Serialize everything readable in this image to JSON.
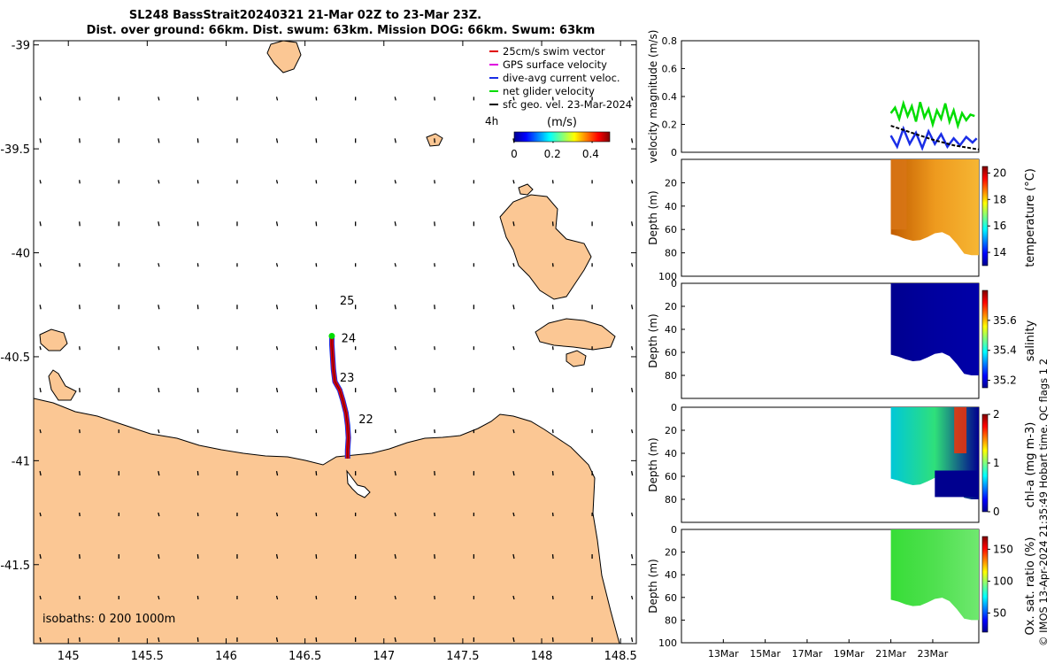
{
  "header": {
    "title_line1": "SL248 BassStrait20240321 21-Mar 02Z to 23-Mar 23Z.",
    "title_line2": "Dist. over ground: 66km. Dist. swum: 63km. Mission DOG: 66km. Swum: 63km"
  },
  "chart_data": [
    {
      "type": "map",
      "name": "glider track map",
      "xlim": [
        144.78,
        148.6
      ],
      "ylim": [
        -41.88,
        -38.98
      ],
      "x_ticks": [
        145,
        145.5,
        146,
        146.5,
        147,
        147.5,
        148,
        148.5
      ],
      "x_tick_labels": [
        "145",
        "145.5",
        "146",
        "146.5",
        "147",
        "147.5",
        "148",
        "148.5"
      ],
      "y_ticks": [
        -39,
        -39.5,
        -40,
        -40.5,
        -41,
        -41.5
      ],
      "y_tick_labels": [
        "-39",
        "-39.5",
        "-40",
        "-40.5",
        "-41",
        "-41.5"
      ],
      "legend": [
        {
          "label": "25cm/s swim vector",
          "color": "#e00000"
        },
        {
          "label": "GPS surface velocity",
          "color": "#e000e0"
        },
        {
          "label": "dive-avg current veloc.",
          "color": "#1a2ee6"
        },
        {
          "label": "net glider velocity",
          "color": "#00dd00"
        },
        {
          "label": "sfc geo. vel. 23-Mar-2024",
          "color": "#000000"
        },
        {
          "label": "4h",
          "color": "#000000"
        }
      ],
      "colorbar": {
        "label": "(m/s)",
        "ticks": [
          "0",
          "0.2",
          "0.4"
        ],
        "range": [
          0,
          0.5
        ]
      },
      "isobath_label": "isobaths: 0   200  1000m",
      "day_labels": [
        {
          "text": "25",
          "lon": 146.72,
          "lat": -40.25
        },
        {
          "text": "24",
          "lon": 146.73,
          "lat": -40.43
        },
        {
          "text": "23",
          "lon": 146.72,
          "lat": -40.62
        },
        {
          "text": "22",
          "lon": 146.84,
          "lat": -40.82
        }
      ],
      "track": [
        [
          146.67,
          -40.4
        ],
        [
          146.67,
          -40.44
        ],
        [
          146.675,
          -40.5
        ],
        [
          146.68,
          -40.56
        ],
        [
          146.69,
          -40.62
        ],
        [
          146.72,
          -40.66
        ],
        [
          146.74,
          -40.71
        ],
        [
          146.76,
          -40.77
        ],
        [
          146.77,
          -40.83
        ],
        [
          146.775,
          -40.89
        ],
        [
          146.77,
          -40.95
        ],
        [
          146.77,
          -40.99
        ]
      ],
      "velocity_grid": {
        "lon_start": 144.82,
        "lon_step": 0.25,
        "lat_start": -39.25,
        "lat_step": -0.2,
        "direction": "south-southeast"
      }
    },
    {
      "type": "line",
      "name": "velocity magnitude panel",
      "ylabel": "velocity magnitude (m/s)",
      "ylim": [
        0,
        0.8
      ],
      "y_ticks": [
        "0",
        "0.2",
        "0.4",
        "0.6",
        "0.8"
      ],
      "x_day_range": [
        11,
        25.2
      ],
      "series": [
        {
          "name": "net glider velocity",
          "color": "#00dd00",
          "x": [
            21.0,
            21.2,
            21.4,
            21.6,
            21.8,
            22.0,
            22.2,
            22.4,
            22.6,
            22.8,
            23.0,
            23.2,
            23.4,
            23.6,
            23.8,
            24.0,
            24.2,
            24.4,
            24.6,
            24.8,
            25.0
          ],
          "values": [
            0.28,
            0.32,
            0.24,
            0.35,
            0.26,
            0.33,
            0.22,
            0.36,
            0.25,
            0.31,
            0.2,
            0.3,
            0.24,
            0.35,
            0.22,
            0.3,
            0.19,
            0.28,
            0.23,
            0.27,
            0.26
          ]
        },
        {
          "name": "dive-avg current veloc.",
          "color": "#1a2ee6",
          "x": [
            21.0,
            21.3,
            21.6,
            21.9,
            22.2,
            22.5,
            22.8,
            23.1,
            23.4,
            23.7,
            24.0,
            24.3,
            24.6,
            24.9,
            25.1
          ],
          "values": [
            0.12,
            0.04,
            0.17,
            0.06,
            0.14,
            0.03,
            0.15,
            0.06,
            0.13,
            0.04,
            0.1,
            0.05,
            0.11,
            0.07,
            0.1
          ]
        },
        {
          "name": "sfc geo. vel.",
          "color": "#000000",
          "x": [
            21.0,
            22.0,
            23.0,
            24.0,
            25.2
          ],
          "values": [
            0.19,
            0.14,
            0.09,
            0.05,
            0.02
          ]
        }
      ]
    },
    {
      "type": "heatmap",
      "name": "temperature section",
      "ylabel": "Depth (m)",
      "ylim": [
        100,
        0
      ],
      "y_ticks": [
        "20",
        "40",
        "60",
        "80",
        "100"
      ],
      "x_day_range": [
        21,
        25.2
      ],
      "max_depth": 82,
      "colorbar_label": "temperature (°C)",
      "colorbar_ticks": [
        "14",
        "16",
        "18",
        "20"
      ],
      "range": [
        13,
        20.5
      ]
    },
    {
      "type": "heatmap",
      "name": "salinity section",
      "ylabel": "Depth (m)",
      "ylim": [
        100,
        0
      ],
      "y_ticks": [
        "0",
        "20",
        "40",
        "60",
        "80"
      ],
      "x_day_range": [
        21,
        25.2
      ],
      "max_depth": 80,
      "colorbar_label": "salinity",
      "colorbar_ticks": [
        "35.2",
        "35.4",
        "35.6"
      ],
      "range": [
        35.15,
        35.8
      ]
    },
    {
      "type": "heatmap",
      "name": "chlorophyll section",
      "ylabel": "Depth (m)",
      "ylim": [
        100,
        0
      ],
      "y_ticks": [
        "0",
        "20",
        "40",
        "60",
        "80"
      ],
      "x_day_range": [
        21,
        25.2
      ],
      "max_depth": 80,
      "colorbar_label": "chl-a (mg m-3)",
      "colorbar_ticks": [
        "0",
        "1",
        "2"
      ],
      "range": [
        0,
        2
      ]
    },
    {
      "type": "heatmap",
      "name": "oxygen saturation section",
      "ylabel": "Depth (m)",
      "ylim": [
        100,
        0
      ],
      "y_ticks": [
        "0",
        "20",
        "40",
        "60",
        "80",
        "100"
      ],
      "x_day_range": [
        21,
        25.2
      ],
      "max_depth": 80,
      "colorbar_label": "Ox. sat. ratio (%)",
      "colorbar_ticks": [
        "50",
        "100",
        "150"
      ],
      "range": [
        20,
        170
      ],
      "x_ticks": [
        "13Mar",
        "15Mar",
        "17Mar",
        "19Mar",
        "21Mar",
        "23Mar"
      ],
      "x_tick_days": [
        13,
        15,
        17,
        19,
        21,
        23
      ]
    }
  ],
  "footer": {
    "imos_stamp": "© IMOS 13-Apr-2024 21:35:49 Hobart time. QC flags 1  2"
  }
}
